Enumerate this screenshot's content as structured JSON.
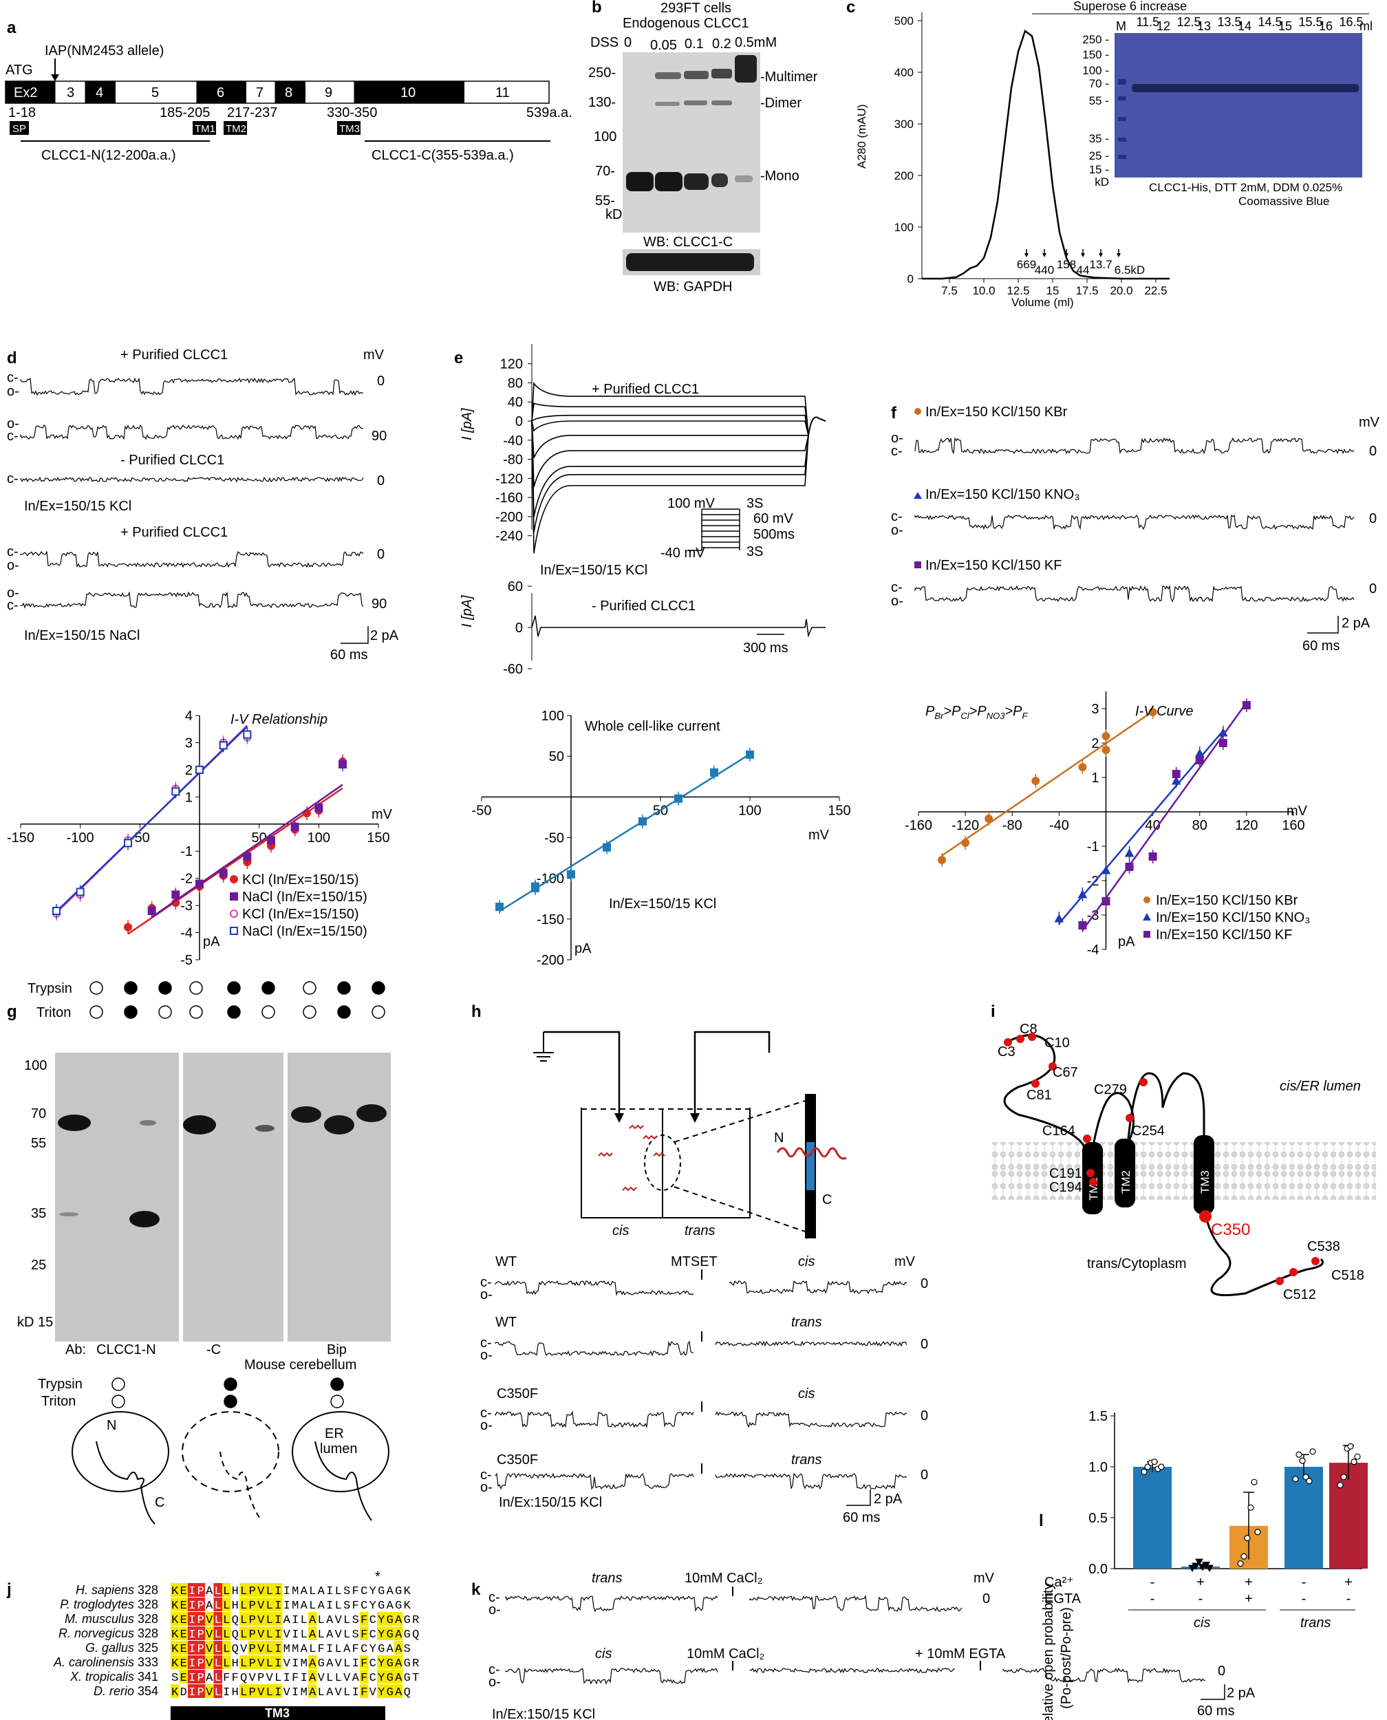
{
  "panels": {
    "a": {
      "letter": "a",
      "iap": "IAP(NM2453 allele)",
      "atg": "ATG",
      "exons": [
        "Ex2",
        "3",
        "4",
        "5",
        "6",
        "7",
        "8",
        "9",
        "10",
        "11"
      ],
      "end_label": "539a.a.",
      "ranges": [
        "1-18",
        "185-205",
        "217-237",
        "330-350"
      ],
      "domains": [
        "SP",
        "TM1",
        "TM2",
        "TM3"
      ],
      "frag_n": "CLCC1-N(12-200a.a.)",
      "frag_c": "CLCC1-C(355-539a.a.)"
    },
    "b": {
      "letter": "b",
      "title1": "293FT cells",
      "title2": "Endogenous CLCC1",
      "dss": "DSS",
      "conc": [
        "0",
        "0.05",
        "0.1",
        "0.2",
        "0.5mM"
      ],
      "mw": [
        "250-",
        "130-",
        "100",
        "70-",
        "55-"
      ],
      "kd": "kD",
      "bands": [
        "-Multimer",
        "-Dimer",
        "-Mono"
      ],
      "wb1": "WB: CLCC1-C",
      "wb2": "WB: GAPDH"
    },
    "c": {
      "letter": "c",
      "ylabel": "A280 (mAU)",
      "xlabel": "Volume (ml)",
      "yticks": [
        "0",
        "100",
        "200",
        "300",
        "400",
        "500"
      ],
      "xticks": [
        "7.5",
        "10.0",
        "12.5",
        "15",
        "17.5",
        "20.0",
        "22.5"
      ],
      "standards": [
        "669",
        "440",
        "158",
        "44",
        "13.7",
        "6.5kD"
      ],
      "gel_title": "Superose 6 increase",
      "gel_lanes": [
        "M",
        "11.5",
        "12",
        "12.5",
        "13",
        "13.5",
        "14",
        "14.5",
        "15",
        "15.5",
        "16",
        "16.5",
        "ml"
      ],
      "gel_mw": [
        "250",
        "150",
        "100",
        "70",
        "55",
        "35",
        "25",
        "15",
        "kD"
      ],
      "gel_caption1": "CLCC1-His, DTT 2mM, DDM 0.025%",
      "gel_caption2": "Coomassive Blue"
    },
    "d": {
      "letter": "d",
      "labels": [
        "+ Purified CLCC1",
        "- Purified CLCC1",
        "In/Ex=150/15 KCl",
        "+ Purified CLCC1",
        "In/Ex=150/15 NaCl"
      ],
      "mv": "mV",
      "voltages": [
        "0",
        "90",
        "0",
        "0",
        "90"
      ],
      "scale_y": "2 pA",
      "scale_x": "60 ms",
      "iv_title": "I-V Relationship",
      "iv_x": "mV",
      "iv_y": "pA",
      "iv_xticks": [
        "-150",
        "-100",
        "-50",
        "50",
        "100",
        "150"
      ],
      "iv_yticks": [
        "4",
        "3",
        "2",
        "1",
        "-1",
        "-2",
        "-3",
        "-4",
        "-5"
      ],
      "legend": [
        "KCl (In/Ex=150/15)",
        "NaCl (In/Ex=150/15)",
        "KCl (In/Ex=15/150)",
        "NaCl (In/Ex=15/150)"
      ]
    },
    "e": {
      "letter": "e",
      "label_plus": "+ Purified CLCC1",
      "label_minus": "- Purified CLCC1",
      "ylabel": "I [pA]",
      "yticks": [
        "120",
        "80",
        "40",
        "0",
        "-40",
        "-80",
        "-120",
        "-160",
        "-200",
        "-240"
      ],
      "yticks2": [
        "60",
        "0",
        "-60"
      ],
      "protocol": [
        "100 mV",
        "3S",
        "60 mV",
        "500ms",
        "-40 mV",
        "3S"
      ],
      "solution": "In/Ex=150/15 KCl",
      "scale_x": "300 ms",
      "iv_title": "Whole cell-like current",
      "iv_x": "mV",
      "iv_y": "pA",
      "iv_xticks": [
        "-50",
        "50",
        "100",
        "150"
      ],
      "iv_yticks": [
        "100",
        "50",
        "-50",
        "-100",
        "-150",
        "-200"
      ],
      "iv_solution": "In/Ex=150/15 KCl"
    },
    "f": {
      "letter": "f",
      "labels": [
        "In/Ex=150 KCl/150 KBr",
        "In/Ex=150 KCl/150 KNO₃",
        "In/Ex=150 KCl/150 KF"
      ],
      "mv": "mV",
      "voltages": [
        "0",
        "0",
        "0"
      ],
      "scale_y": "2 pA",
      "scale_x": "60 ms",
      "perm": "P_Br>P_Cl>P_NO3>P_F",
      "iv_title": "I-V Curve",
      "iv_x": "mV",
      "iv_y": "pA",
      "iv_xticks": [
        "-160",
        "-120",
        "-80",
        "-40",
        "40",
        "80",
        "120",
        "160"
      ],
      "iv_yticks": [
        "3",
        "2",
        "1",
        "-1",
        "-2",
        "-3",
        "-4"
      ],
      "legend": [
        "In/Ex=150 KCl/150 KBr",
        "In/Ex=150 KCl/150 KNO₃",
        "In/Ex=150 KCl/150 KF"
      ]
    },
    "g": {
      "letter": "g",
      "trypsin": "Trypsin",
      "triton": "Triton",
      "mw": [
        "100",
        "70",
        "55",
        "35",
        "25",
        "kD 15"
      ],
      "ab": "Ab:",
      "abs": [
        "CLCC1-N",
        "-C",
        "Bip"
      ],
      "tissue": "Mouse cerebellum",
      "n": "N",
      "c": "C",
      "er1": "ER",
      "er2": "lumen"
    },
    "h": {
      "letter": "h",
      "cis": "cis",
      "trans": "trans",
      "n": "N",
      "c": "C",
      "traces": [
        "WT",
        "WT",
        "C350F",
        "C350F"
      ],
      "mtset": "MTSET",
      "sides": [
        "cis",
        "trans",
        "cis",
        "trans"
      ],
      "mv": "mV",
      "voltages": [
        "0",
        "0",
        "0",
        "0"
      ],
      "solution": "In/Ex:150/15 KCl",
      "scale_y": "2 pA",
      "scale_x": "60 ms"
    },
    "i": {
      "letter": "i",
      "cys_top": [
        "C8",
        "C3",
        "C10",
        "C67",
        "C81",
        "C164",
        "C279",
        "C254",
        "C191",
        "C194"
      ],
      "cys_bottom": [
        "C538",
        "C518",
        "C512"
      ],
      "c350": "C350",
      "tm": [
        "TM1",
        "TM2",
        "TM3"
      ],
      "lumen": "cis/ER lumen",
      "cyto": "trans/Cytoplasm"
    },
    "j": {
      "letter": "j",
      "species": [
        "H. sapiens",
        "P. troglodytes",
        "M. musculus",
        "R. norvegicus",
        "G. gallus",
        "A. carolinensis",
        "X. tropicalis",
        "D. rerio"
      ],
      "starts": [
        "328",
        "328",
        "328",
        "328",
        "325",
        "333",
        "341",
        "354"
      ],
      "seqs": [
        "KEIPALLHLPVLIIMALAILSFCYGAGK",
        "KEIPALLHLPVLIIMALAILSFCYGAGK",
        "KEIPVLLQLPVLIAILALAVLSFCYGAGR",
        "KEIPVLLQLPVLIVILALAVLSFCYGAGQ",
        "KEIPVLLQVPVLIMMALFILAFCYGAAS",
        "KEIPVLLHLPVLIVIMAGAVLIFCYGAGR",
        "SEIPALFFQVPVLIFIAVLLVAFCYGAGT",
        "KDIPVLIHLPVLIVIMALAVLIFVYGAQ"
      ],
      "star": "*",
      "tm": "TM3"
    },
    "k": {
      "letter": "k",
      "cacl": "10mM CaCl₂",
      "egta": "+ 10mM EGTA",
      "sides": [
        "trans",
        "cis"
      ],
      "mv": "mV",
      "voltages": [
        "0",
        "0"
      ],
      "solution": "In/Ex:150/15 KCl",
      "scale_y": "2 pA",
      "scale_x": "60 ms"
    },
    "l": {
      "letter": "l",
      "ylabel1": "Relative open probability",
      "ylabel2": "(Po-post/Po-pre)",
      "yticks": [
        "0.0",
        "0.5",
        "1.0",
        "1.5"
      ],
      "ca": "Ca²⁺",
      "egta": "EGTA",
      "ca_row": [
        "-",
        "+",
        "+",
        "-",
        "+"
      ],
      "egta_row": [
        "-",
        "-",
        "+",
        "-",
        "-"
      ],
      "groups": [
        "cis",
        "trans"
      ]
    }
  },
  "chart_data": [
    {
      "type": "line",
      "title": "",
      "xlabel": "Volume (ml)",
      "ylabel": "A280 (mAU)",
      "xlim": [
        5.5,
        23.5
      ],
      "ylim": [
        0,
        520
      ],
      "x": [
        5.5,
        7,
        8,
        8.5,
        9,
        9.5,
        10,
        10.5,
        11,
        11.5,
        12,
        12.5,
        13,
        13.5,
        14,
        14.5,
        15,
        15.5,
        16,
        16.5,
        17,
        18,
        20,
        23.5
      ],
      "y": [
        0,
        0,
        3,
        10,
        20,
        25,
        40,
        80,
        150,
        260,
        370,
        440,
        480,
        470,
        410,
        300,
        180,
        90,
        40,
        15,
        6,
        2,
        0,
        0
      ],
      "markers": {
        "labels": [
          "669",
          "440",
          "158",
          "44",
          "13.7",
          "6.5kD"
        ],
        "x": [
          13.1,
          14.4,
          16.0,
          17.2,
          18.5,
          19.8
        ]
      }
    },
    {
      "type": "scatter",
      "title": "I-V Relationship",
      "xlabel": "mV",
      "ylabel": "pA",
      "xlim": [
        -150,
        150
      ],
      "ylim": [
        -5,
        4
      ],
      "series": [
        {
          "name": "KCl (In/Ex=150/15)",
          "color": "#e02020",
          "x": [
            -60,
            -40,
            -20,
            0,
            20,
            40,
            60,
            80,
            90,
            100,
            120
          ],
          "y": [
            -3.8,
            -3.1,
            -2.9,
            -2.3,
            -1.9,
            -1.4,
            -0.8,
            -0.2,
            0.4,
            0.5,
            2.3
          ]
        },
        {
          "name": "NaCl (In/Ex=150/15)",
          "color": "#6a1b9a",
          "x": [
            -40,
            -20,
            0,
            20,
            40,
            60,
            80,
            100,
            120
          ],
          "y": [
            -3.2,
            -2.6,
            -2.2,
            -1.8,
            -1.2,
            -0.6,
            -0.1,
            0.6,
            2.2
          ]
        },
        {
          "name": "KCl (In/Ex=15/150)",
          "color": "#e040a0",
          "x": [
            -120,
            -100,
            -60,
            -20,
            0,
            20,
            40
          ],
          "y": [
            -3.3,
            -2.6,
            -0.6,
            1.3,
            2.0,
            3.0,
            3.2
          ]
        },
        {
          "name": "NaCl (In/Ex=15/150)",
          "color": "#1e3ab8",
          "x": [
            -120,
            -100,
            -60,
            -20,
            0,
            20,
            40
          ],
          "y": [
            -3.2,
            -2.5,
            -0.7,
            1.2,
            2.0,
            2.9,
            3.3
          ]
        }
      ]
    },
    {
      "type": "scatter",
      "title": "Whole cell-like current",
      "xlabel": "mV",
      "ylabel": "pA",
      "xlim": [
        -50,
        150
      ],
      "ylim": [
        -200,
        100
      ],
      "series": [
        {
          "name": "",
          "color": "#1f7ab5",
          "x": [
            -40,
            -20,
            -20,
            0,
            20,
            40,
            60,
            80,
            100
          ],
          "y": [
            -135,
            -112,
            -110,
            -95,
            -62,
            -30,
            -2,
            30,
            52
          ]
        }
      ]
    },
    {
      "type": "scatter",
      "title": "I-V Curve",
      "xlabel": "mV",
      "ylabel": "pA",
      "xlim": [
        -160,
        160
      ],
      "ylim": [
        -4,
        3.5
      ],
      "series": [
        {
          "name": "In/Ex=150 KCl/150 KBr",
          "color": "#c87020",
          "x": [
            -140,
            -120,
            -100,
            -60,
            -20,
            0,
            0,
            40
          ],
          "y": [
            -1.4,
            -0.9,
            -0.2,
            0.9,
            1.3,
            1.8,
            2.2,
            2.9
          ]
        },
        {
          "name": "In/Ex=150 KCl/150 KNO₃",
          "color": "#1e3ab8",
          "x": [
            -40,
            -20,
            0,
            20,
            60,
            80,
            100
          ],
          "y": [
            -3.1,
            -2.4,
            -1.7,
            -1.2,
            0.9,
            1.7,
            2.3
          ]
        },
        {
          "name": "In/Ex=150 KCl/150 KF",
          "color": "#6a1b9a",
          "x": [
            -20,
            0,
            20,
            40,
            60,
            80,
            100,
            120
          ],
          "y": [
            -3.3,
            -2.6,
            -1.6,
            -1.3,
            1.1,
            1.5,
            2.0,
            3.1
          ]
        }
      ]
    },
    {
      "type": "bar",
      "title": "",
      "ylabel": "Relative open probability (Po-post/Po-pre)",
      "ylim": [
        0,
        1.5
      ],
      "categories": [
        "cis -/-",
        "cis +/-",
        "cis +/+",
        "trans -/-",
        "trans +/-"
      ],
      "values": [
        1.0,
        0.02,
        0.42,
        1.0,
        1.04
      ],
      "errors": [
        0.05,
        0.02,
        0.33,
        0.12,
        0.17
      ],
      "colors": [
        "#1f7ab5",
        "#1f7ab5",
        "#e8962e",
        "#1f7ab5",
        "#b22234"
      ]
    }
  ]
}
